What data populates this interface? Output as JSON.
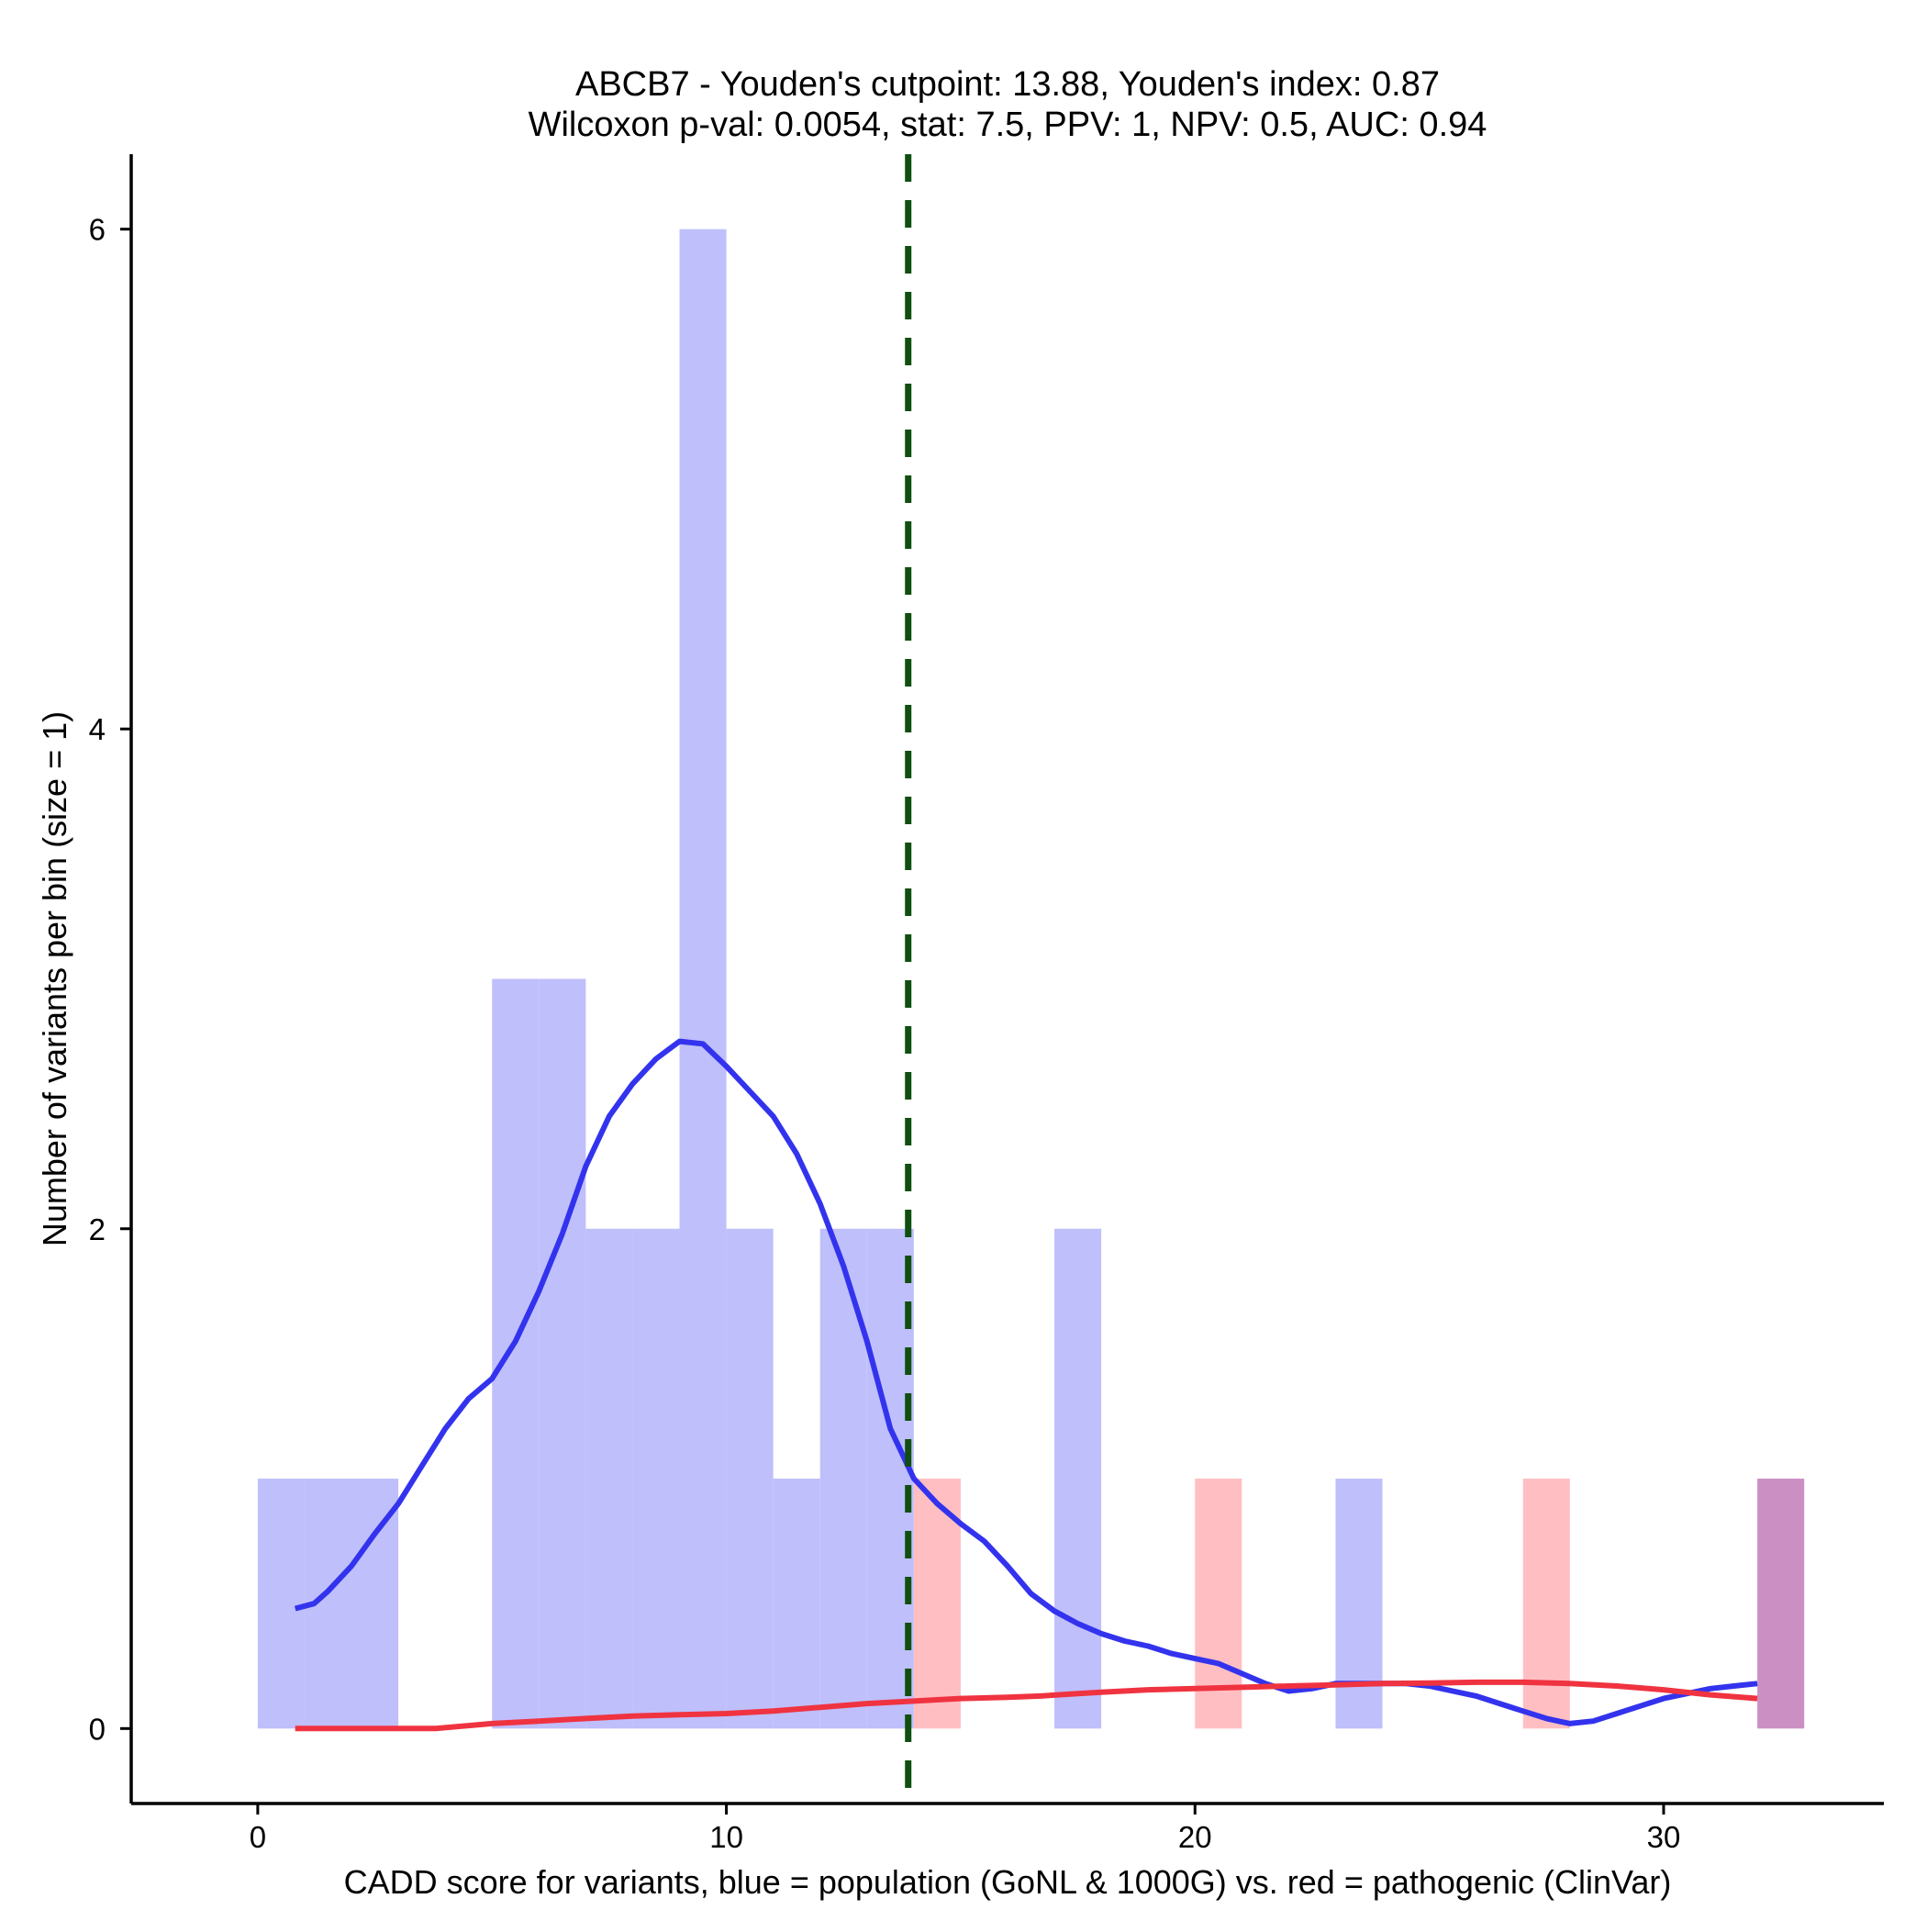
{
  "chart_data": {
    "type": "histogram",
    "title": "ABCB7 - Youden's cutpoint: 13.88, Youden's index: 0.87",
    "subtitle": "Wilcoxon p-val: 0.0054, stat: 7.5, PPV: 1, NPV: 0.5, AUC: 0.94",
    "xlabel": "CADD score for variants, blue = population (GoNL & 1000G) vs. red = pathogenic (ClinVar)",
    "ylabel": "Number of variants per bin (size = 1)",
    "xlim": [
      -2.7,
      34.7
    ],
    "ylim": [
      -0.3,
      6.3
    ],
    "x_ticks": [
      0,
      10,
      20,
      30
    ],
    "x_tick_labels": [
      "0",
      "10",
      "20",
      "30"
    ],
    "y_ticks": [
      0,
      2,
      4,
      6
    ],
    "y_tick_labels": [
      "0",
      "2",
      "4",
      "6"
    ],
    "bin_width": 1,
    "cutpoint": 13.88,
    "colors": {
      "population_bar": "#bfbffc",
      "pathogenic_bar": "#ffbfc2",
      "overlap_bar": "#cc8fc3",
      "population_density": "#3333ee",
      "pathogenic_density": "#f03340",
      "cutpoint_line": "#0f4f0f"
    },
    "series": [
      {
        "name": "population (GoNL & 1000G)",
        "bins": [
          {
            "x0": 0,
            "x1": 1,
            "count": 1
          },
          {
            "x0": 1,
            "x1": 2,
            "count": 1
          },
          {
            "x0": 2,
            "x1": 3,
            "count": 1
          },
          {
            "x0": 5,
            "x1": 6,
            "count": 3
          },
          {
            "x0": 6,
            "x1": 7,
            "count": 3
          },
          {
            "x0": 7,
            "x1": 8,
            "count": 2
          },
          {
            "x0": 8,
            "x1": 9,
            "count": 2
          },
          {
            "x0": 9,
            "x1": 10,
            "count": 6
          },
          {
            "x0": 10,
            "x1": 11,
            "count": 2
          },
          {
            "x0": 11,
            "x1": 12,
            "count": 1
          },
          {
            "x0": 12,
            "x1": 13,
            "count": 2
          },
          {
            "x0": 13,
            "x1": 14,
            "count": 2
          },
          {
            "x0": 17,
            "x1": 18,
            "count": 2
          },
          {
            "x0": 23,
            "x1": 24,
            "count": 1
          },
          {
            "x0": 32,
            "x1": 33,
            "count": 1
          }
        ]
      },
      {
        "name": "pathogenic (ClinVar)",
        "bins": [
          {
            "x0": 14,
            "x1": 15,
            "count": 1
          },
          {
            "x0": 20,
            "x1": 21,
            "count": 1
          },
          {
            "x0": 27,
            "x1": 28,
            "count": 1
          },
          {
            "x0": 32,
            "x1": 33,
            "count": 1
          }
        ]
      }
    ],
    "density_curves": [
      {
        "name": "population density",
        "x": [
          0.8,
          1.2,
          1.5,
          2.0,
          2.5,
          3.0,
          3.5,
          4.0,
          4.5,
          5.0,
          5.5,
          6.0,
          6.5,
          7.0,
          7.5,
          8.0,
          8.5,
          9.0,
          9.5,
          10.0,
          10.5,
          11.0,
          11.5,
          12.0,
          12.5,
          13.0,
          13.5,
          14.0,
          14.5,
          15.0,
          15.5,
          16.0,
          16.5,
          17.0,
          17.5,
          18.0,
          18.5,
          19.0,
          19.5,
          20.0,
          20.5,
          21.0,
          21.5,
          22.0,
          22.5,
          23.0,
          23.5,
          24.0,
          24.5,
          25.0,
          25.5,
          26.0,
          26.5,
          27.0,
          27.5,
          28.0,
          28.5,
          29.0,
          29.5,
          30.0,
          30.5,
          31.0,
          31.5,
          32.0
        ],
        "y": [
          0.48,
          0.5,
          0.55,
          0.65,
          0.78,
          0.9,
          1.05,
          1.2,
          1.32,
          1.4,
          1.55,
          1.75,
          1.98,
          2.25,
          2.45,
          2.58,
          2.68,
          2.75,
          2.74,
          2.65,
          2.55,
          2.45,
          2.3,
          2.1,
          1.85,
          1.55,
          1.2,
          1.0,
          0.9,
          0.82,
          0.75,
          0.65,
          0.54,
          0.47,
          0.42,
          0.38,
          0.35,
          0.33,
          0.3,
          0.28,
          0.26,
          0.22,
          0.18,
          0.15,
          0.16,
          0.18,
          0.18,
          0.18,
          0.18,
          0.17,
          0.15,
          0.13,
          0.1,
          0.07,
          0.04,
          0.02,
          0.03,
          0.06,
          0.09,
          0.12,
          0.14,
          0.16,
          0.17,
          0.18
        ]
      },
      {
        "name": "pathogenic density",
        "x": [
          0.8,
          2.0,
          3.0,
          3.8,
          5.0,
          6.0,
          7.0,
          8.0,
          9.0,
          10.0,
          10.5,
          11.0,
          12.0,
          13.0,
          14.0,
          15.0,
          16.0,
          16.7,
          17.5,
          18.0,
          19.0,
          20.0,
          21.0,
          22.0,
          23.0,
          24.0,
          25.0,
          26.0,
          27.0,
          28.0,
          29.0,
          30.0,
          31.0,
          32.0
        ],
        "y": [
          0.0,
          0.0,
          0.0,
          0.0,
          0.02,
          0.03,
          0.04,
          0.05,
          0.055,
          0.06,
          0.065,
          0.07,
          0.085,
          0.1,
          0.11,
          0.12,
          0.125,
          0.13,
          0.14,
          0.145,
          0.155,
          0.16,
          0.165,
          0.17,
          0.175,
          0.18,
          0.182,
          0.185,
          0.185,
          0.18,
          0.17,
          0.155,
          0.135,
          0.12
        ]
      }
    ]
  }
}
